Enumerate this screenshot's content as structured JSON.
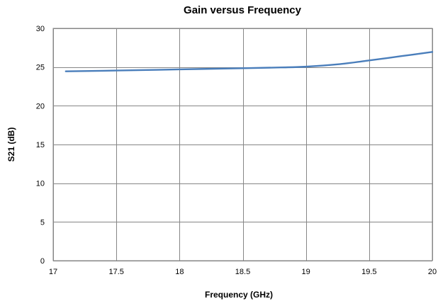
{
  "chart_data": {
    "type": "line",
    "title": "Gain versus Frequency",
    "xlabel": "Frequency (GHz)",
    "ylabel": "S21 (dB)",
    "xlim": [
      17,
      20
    ],
    "ylim": [
      0,
      30
    ],
    "xticks": [
      17,
      17.5,
      18,
      18.5,
      19,
      19.5,
      20
    ],
    "xtick_labels": [
      "17",
      "17.5",
      "18",
      "18.5",
      "19",
      "19.5",
      "20"
    ],
    "yticks": [
      0,
      5,
      10,
      15,
      20,
      25,
      30
    ],
    "ytick_labels": [
      "0",
      "5",
      "10",
      "15",
      "20",
      "25",
      "30"
    ],
    "grid": true,
    "legend": "none",
    "series": [
      {
        "color": "#4a7ebb",
        "x": [
          17.1,
          17.5,
          18.0,
          18.5,
          18.8,
          19.0,
          19.25,
          19.5,
          19.75,
          20.0
        ],
        "y": [
          24.45,
          24.55,
          24.7,
          24.85,
          24.95,
          25.05,
          25.35,
          25.85,
          26.4,
          26.95
        ]
      }
    ]
  }
}
